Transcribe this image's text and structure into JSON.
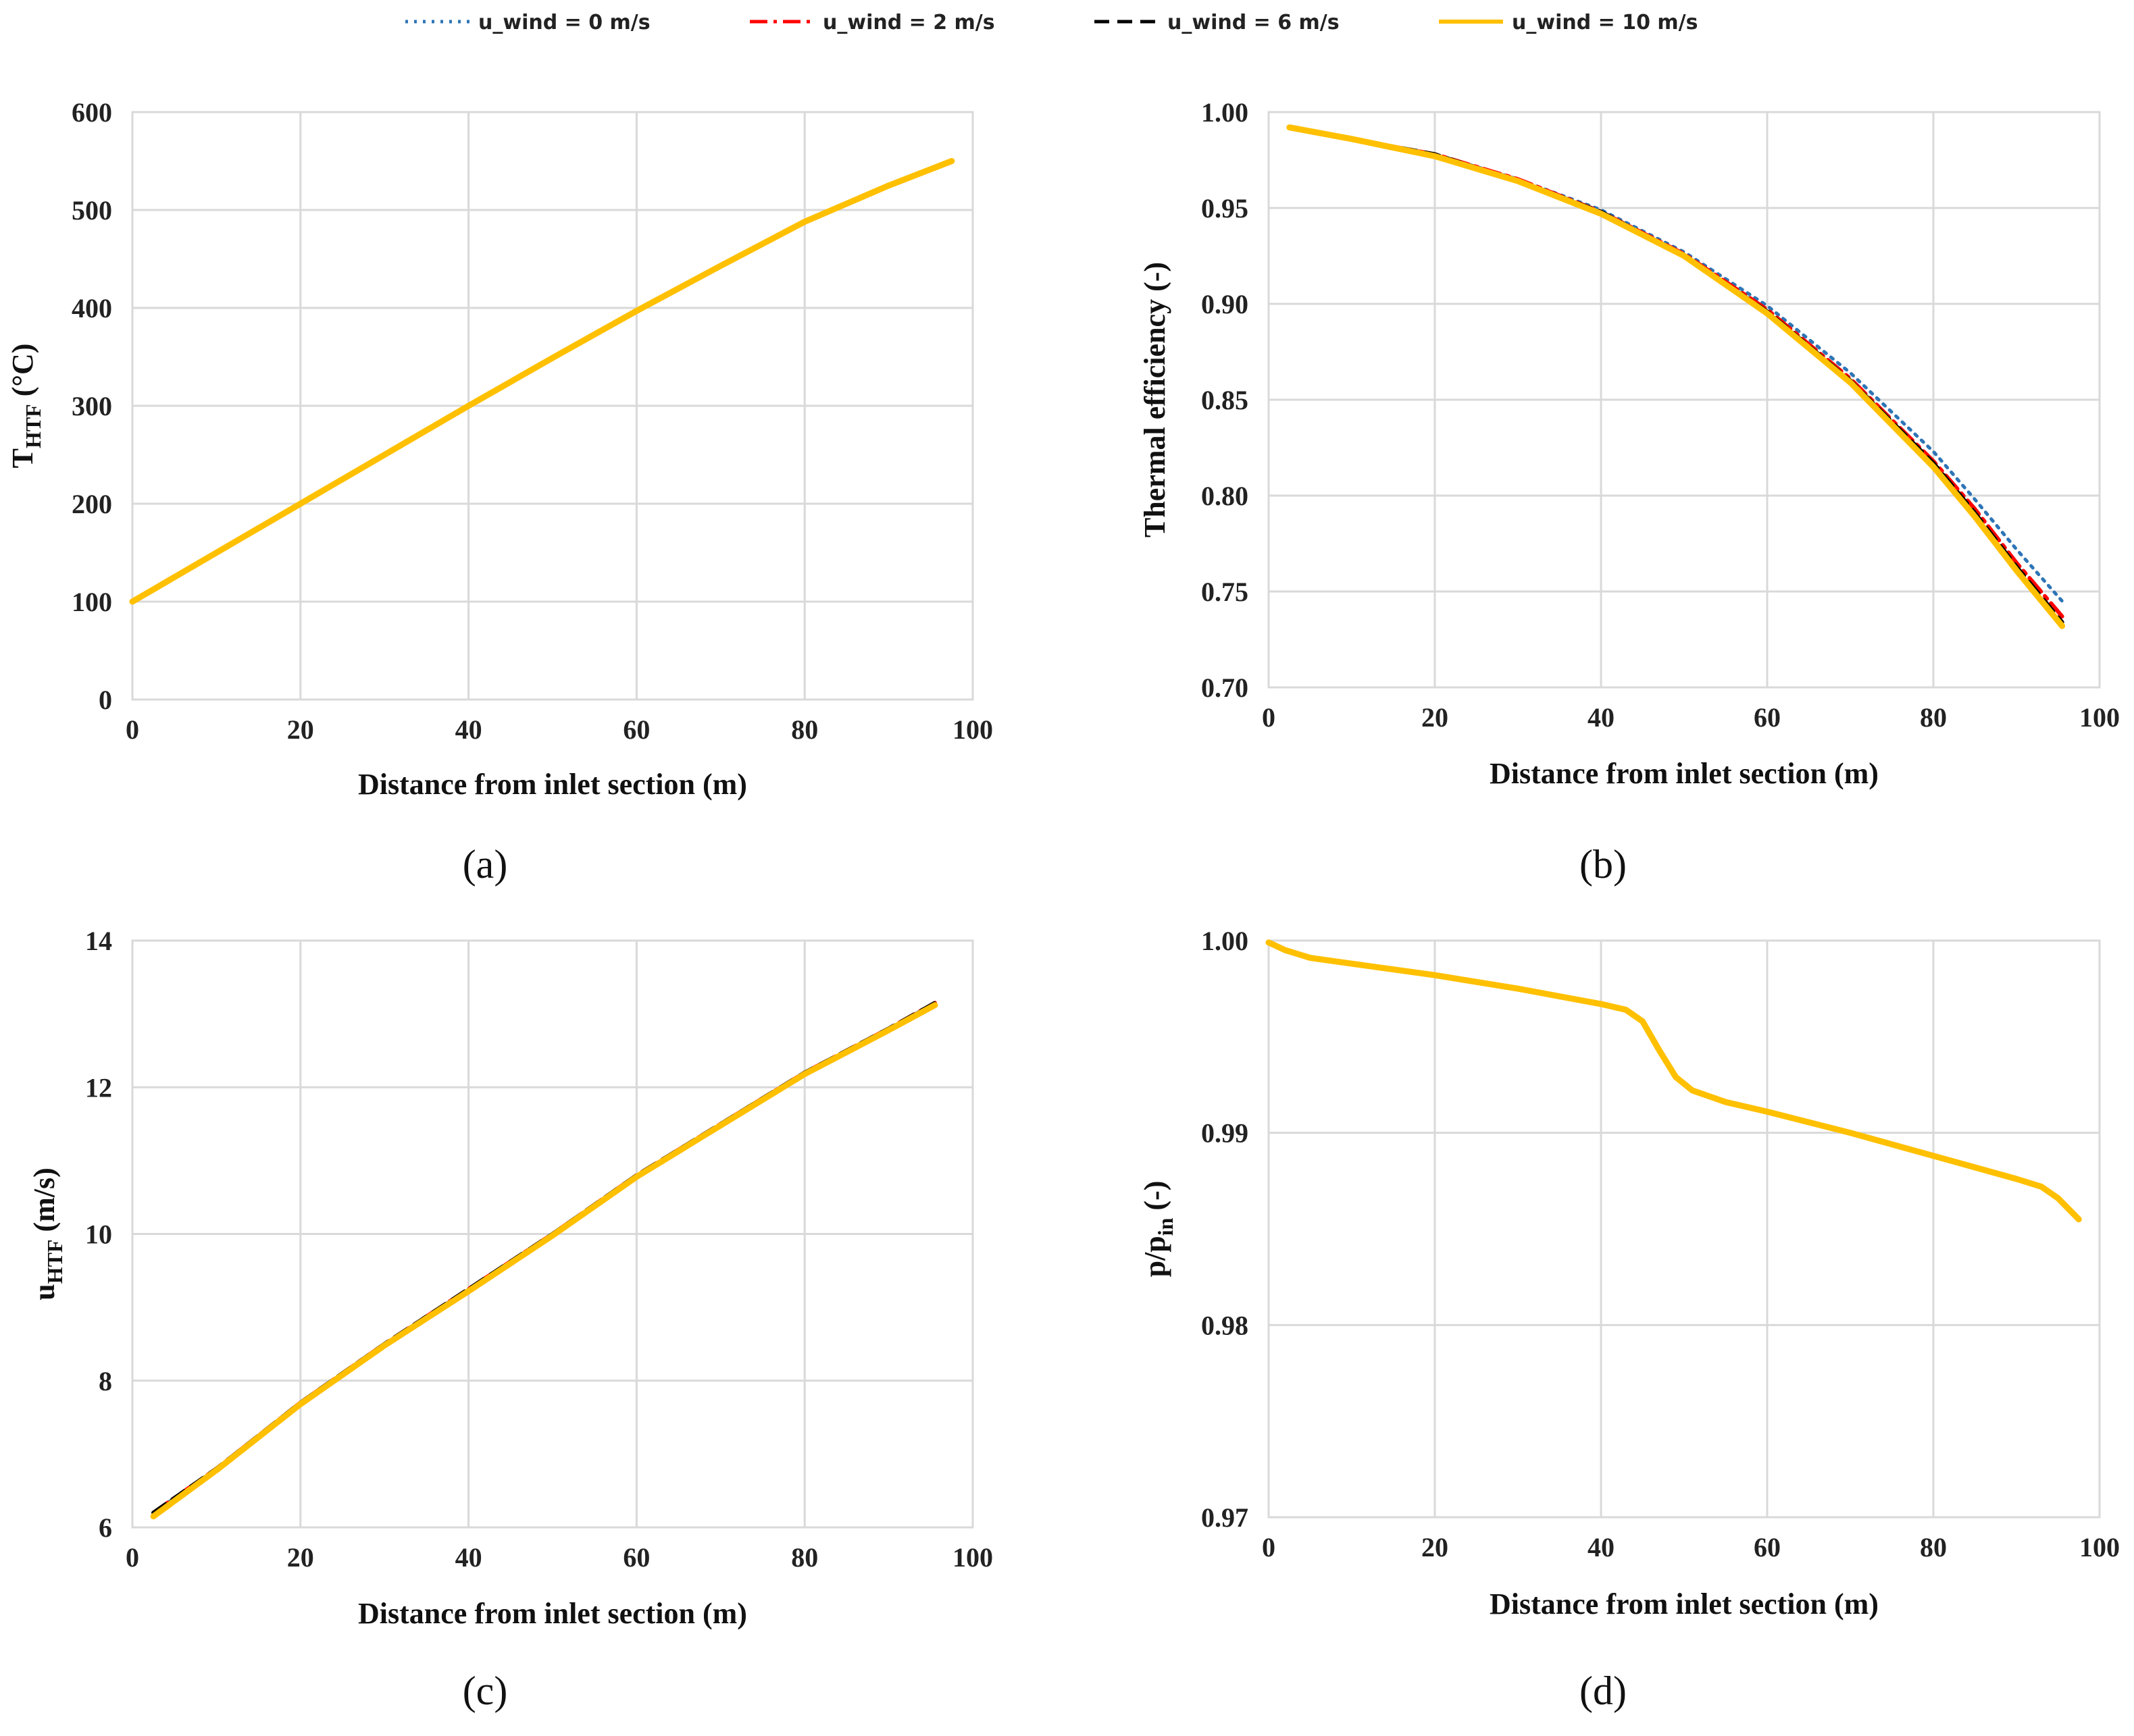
{
  "legend": {
    "items": [
      {
        "label": "u_wind = 0 m/s",
        "color": "#2e75b6",
        "dash": "dotted"
      },
      {
        "label": "u_wind = 2 m/s",
        "color": "#ff0000",
        "dash": "dashdot"
      },
      {
        "label": "u_wind = 6 m/s",
        "color": "#000000",
        "dash": "dashed"
      },
      {
        "label": "u_wind = 10 m/s",
        "color": "#ffc000",
        "dash": "solid"
      }
    ]
  },
  "chart_data": [
    {
      "type": "line",
      "panel_label": "(a)",
      "xlabel": "Distance from inlet section (m)",
      "ylabel": "T",
      "ylabel_sub": "HTF",
      "ylabel_suffix": " (°C)",
      "xlim": [
        0,
        100
      ],
      "ylim": [
        0,
        600
      ],
      "xticks": [
        "0",
        "20",
        "40",
        "60",
        "80",
        "100"
      ],
      "yticks": [
        "0",
        "100",
        "200",
        "300",
        "400",
        "500",
        "600"
      ],
      "grid": true,
      "x": [
        0,
        10,
        20,
        30,
        40,
        50,
        60,
        70,
        80,
        90,
        97.5
      ],
      "series": [
        {
          "name": "u_wind = 0 m/s",
          "values": [
            100,
            150,
            200,
            250,
            300,
            349,
            397,
            443,
            488,
            525,
            550
          ]
        },
        {
          "name": "u_wind = 2 m/s",
          "values": [
            100,
            150,
            200,
            250,
            300,
            349,
            397,
            443,
            488,
            525,
            550
          ]
        },
        {
          "name": "u_wind = 6 m/s",
          "values": [
            100,
            150,
            200,
            250,
            300,
            349,
            397,
            443,
            488,
            525,
            550
          ]
        },
        {
          "name": "u_wind = 10 m/s",
          "values": [
            100,
            150,
            200,
            250,
            300,
            349,
            397,
            443,
            488,
            525,
            550
          ]
        }
      ]
    },
    {
      "type": "line",
      "panel_label": "(b)",
      "xlabel": "Distance from inlet section (m)",
      "ylabel": "Thermal efficiency (-)",
      "ylabel_sub": "",
      "ylabel_suffix": "",
      "xlim": [
        0,
        100
      ],
      "ylim": [
        0.7,
        1.0
      ],
      "xticks": [
        "0",
        "20",
        "40",
        "60",
        "80",
        "100"
      ],
      "yticks": [
        "0.70",
        "0.75",
        "0.80",
        "0.85",
        "0.90",
        "0.95",
        "1.00"
      ],
      "grid": true,
      "x": [
        2.5,
        10,
        20,
        30,
        40,
        50,
        60,
        70,
        80,
        85,
        90,
        95.5
      ],
      "series": [
        {
          "name": "u_wind = 0 m/s",
          "values": [
            0.992,
            0.986,
            0.978,
            0.965,
            0.949,
            0.927,
            0.899,
            0.864,
            0.823,
            0.798,
            0.772,
            0.745
          ]
        },
        {
          "name": "u_wind = 2 m/s",
          "values": [
            0.992,
            0.986,
            0.978,
            0.965,
            0.948,
            0.926,
            0.897,
            0.861,
            0.818,
            0.793,
            0.765,
            0.737
          ]
        },
        {
          "name": "u_wind = 6 m/s",
          "values": [
            0.992,
            0.986,
            0.978,
            0.964,
            0.948,
            0.925,
            0.896,
            0.86,
            0.817,
            0.791,
            0.763,
            0.734
          ]
        },
        {
          "name": "u_wind = 10 m/s",
          "values": [
            0.992,
            0.986,
            0.977,
            0.964,
            0.947,
            0.925,
            0.895,
            0.859,
            0.815,
            0.789,
            0.761,
            0.732
          ]
        }
      ]
    },
    {
      "type": "line",
      "panel_label": "(c)",
      "xlabel": "Distance from inlet section (m)",
      "ylabel": "u",
      "ylabel_sub": "HTF",
      "ylabel_suffix": " (m/s)",
      "xlim": [
        0,
        100
      ],
      "ylim": [
        6,
        14
      ],
      "xticks": [
        "0",
        "20",
        "40",
        "60",
        "80",
        "100"
      ],
      "yticks": [
        "6",
        "8",
        "10",
        "12",
        "14"
      ],
      "grid": true,
      "x": [
        2.5,
        10,
        20,
        30,
        40,
        50,
        60,
        70,
        80,
        90,
        95.5
      ],
      "series": [
        {
          "name": "u_wind = 0 m/s",
          "values": [
            6.2,
            6.8,
            7.7,
            8.5,
            9.25,
            10.0,
            10.8,
            11.5,
            12.2,
            12.8,
            13.15
          ]
        },
        {
          "name": "u_wind = 2 m/s",
          "values": [
            6.2,
            6.8,
            7.7,
            8.5,
            9.25,
            10.0,
            10.8,
            11.5,
            12.2,
            12.8,
            13.15
          ]
        },
        {
          "name": "u_wind = 6 m/s",
          "values": [
            6.2,
            6.8,
            7.7,
            8.5,
            9.25,
            10.0,
            10.8,
            11.5,
            12.2,
            12.8,
            13.15
          ]
        },
        {
          "name": "u_wind = 10 m/s",
          "values": [
            6.15,
            6.78,
            7.68,
            8.48,
            9.22,
            9.98,
            10.78,
            11.48,
            12.18,
            12.78,
            13.12
          ]
        }
      ]
    },
    {
      "type": "line",
      "panel_label": "(d)",
      "xlabel": "Distance from inlet section (m)",
      "ylabel": "p/p",
      "ylabel_sub": "in",
      "ylabel_suffix": " (-)",
      "xlim": [
        0,
        100
      ],
      "ylim": [
        0.97,
        1.0
      ],
      "xticks": [
        "0",
        "20",
        "40",
        "60",
        "80",
        "100"
      ],
      "yticks": [
        "0.97",
        "0.98",
        "0.99",
        "1.00"
      ],
      "grid": true,
      "x": [
        0,
        2,
        5,
        10,
        20,
        30,
        40,
        43,
        45,
        47,
        49,
        51,
        55,
        60,
        70,
        80,
        90,
        93,
        95,
        97.5
      ],
      "series": [
        {
          "name": "u_wind = 0 m/s",
          "values": [
            0.9999,
            0.9995,
            0.9991,
            0.9988,
            0.9982,
            0.9975,
            0.9967,
            0.9964,
            0.9958,
            0.9943,
            0.9929,
            0.9922,
            0.9916,
            0.9911,
            0.99,
            0.9888,
            0.9876,
            0.9872,
            0.9866,
            0.9855
          ]
        },
        {
          "name": "u_wind = 2 m/s",
          "values": [
            0.9999,
            0.9995,
            0.9991,
            0.9988,
            0.9982,
            0.9975,
            0.9967,
            0.9964,
            0.9958,
            0.9943,
            0.9929,
            0.9922,
            0.9916,
            0.9911,
            0.99,
            0.9888,
            0.9876,
            0.9872,
            0.9866,
            0.9855
          ]
        },
        {
          "name": "u_wind = 6 m/s",
          "values": [
            0.9999,
            0.9995,
            0.9991,
            0.9988,
            0.9982,
            0.9975,
            0.9967,
            0.9964,
            0.9958,
            0.9943,
            0.9929,
            0.9922,
            0.9916,
            0.9911,
            0.99,
            0.9888,
            0.9876,
            0.9872,
            0.9866,
            0.9855
          ]
        },
        {
          "name": "u_wind = 10 m/s",
          "values": [
            0.9999,
            0.9995,
            0.9991,
            0.9988,
            0.9982,
            0.9975,
            0.9967,
            0.9964,
            0.9958,
            0.9943,
            0.9929,
            0.9922,
            0.9916,
            0.9911,
            0.99,
            0.9888,
            0.9876,
            0.9872,
            0.9866,
            0.9855
          ]
        }
      ]
    }
  ]
}
